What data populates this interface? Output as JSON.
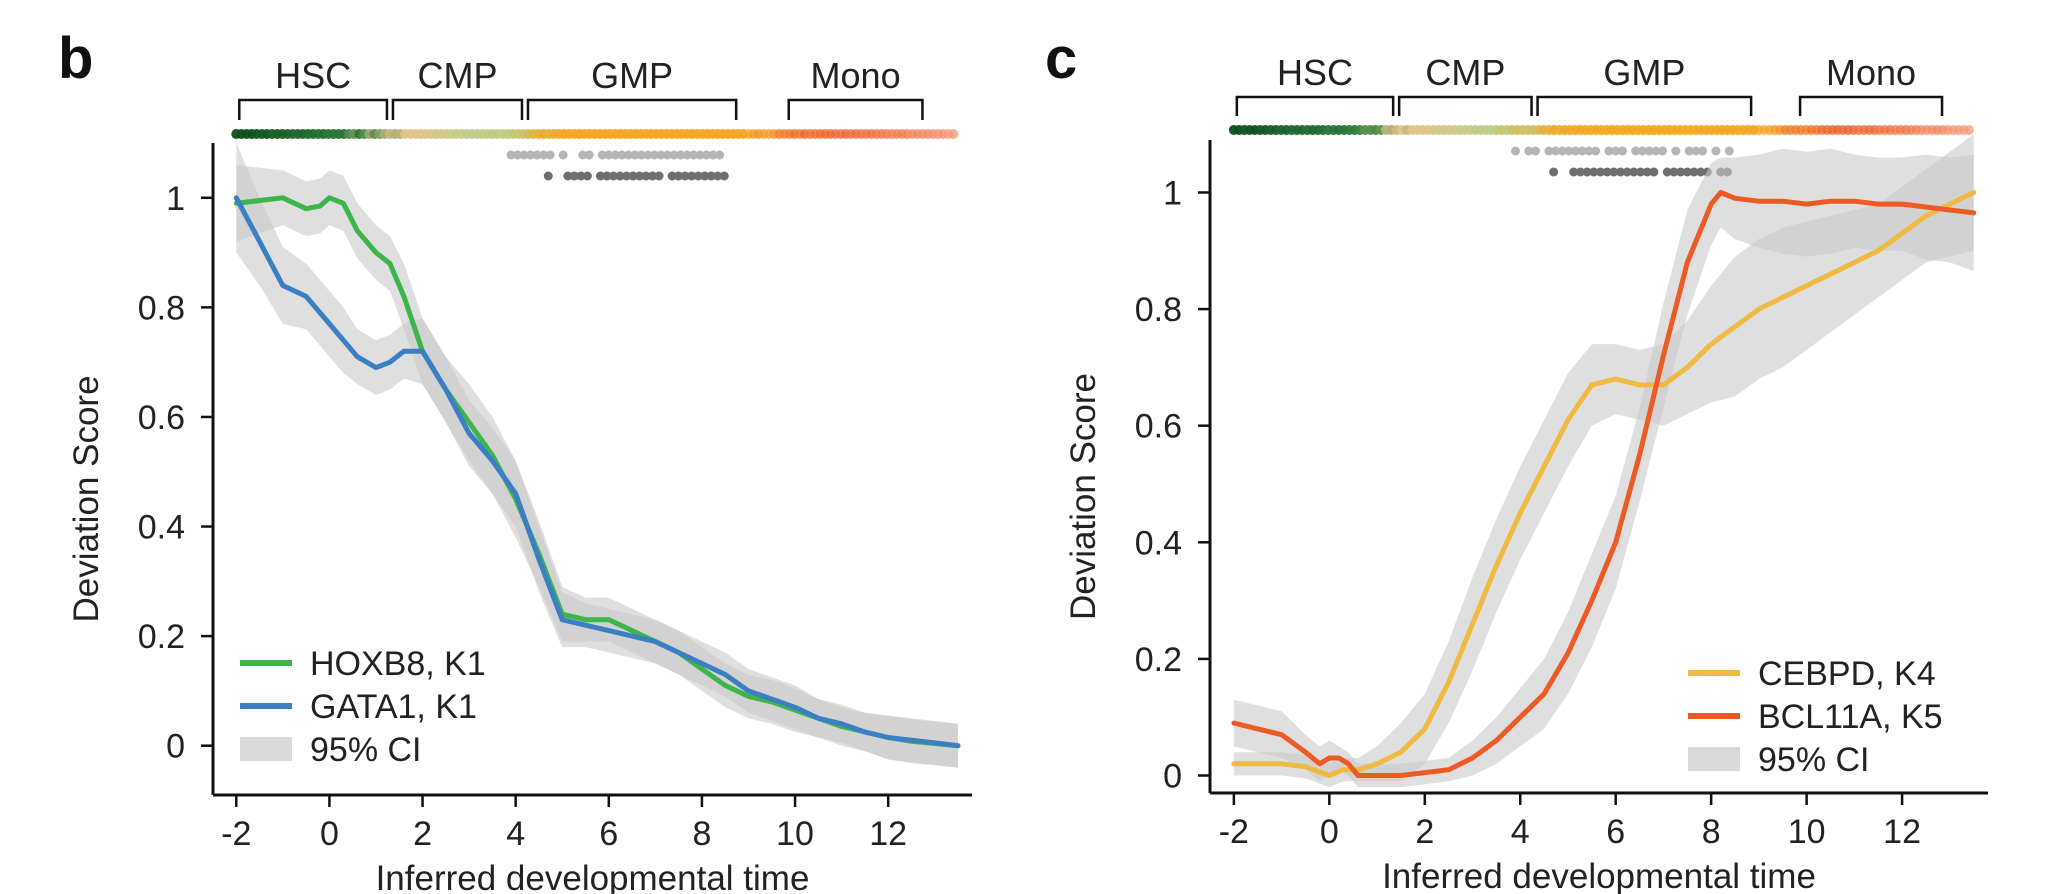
{
  "chart_data": [
    {
      "type": "line",
      "panel_label": "b",
      "xlabel": "Inferred developmental time",
      "ylabel": "Deviation Score",
      "xlim": [
        -2.5,
        13.8
      ],
      "ylim": [
        -0.09,
        1.1
      ],
      "x_ticks": [
        -2,
        0,
        2,
        4,
        6,
        8,
        10,
        12
      ],
      "x_tick_labels": [
        "-2",
        "0",
        "2",
        "4",
        "6",
        "8",
        "10",
        "12"
      ],
      "y_ticks": [
        0,
        0.2,
        0.4,
        0.6,
        0.8,
        1
      ],
      "y_tick_labels": [
        "0",
        "0.2",
        "0.4",
        "0.6",
        "0.8",
        "1"
      ],
      "stages": [
        {
          "label": "HSC",
          "x_start": -2,
          "x_end": 1.3
        },
        {
          "label": "CMP",
          "x_start": 1.3,
          "x_end": 4.2
        },
        {
          "label": "GMP",
          "x_start": 4.2,
          "x_end": 8.8
        },
        {
          "label": "Mono",
          "x_start": 9.8,
          "x_end": 12.8
        }
      ],
      "ci_label": "95% CI",
      "legend_position": "bottom-left",
      "series": [
        {
          "name": "HOXB8, K1",
          "color": "#3cb54a",
          "x": [
            -2,
            -1.5,
            -1,
            -0.5,
            -0.2,
            0,
            0.3,
            0.6,
            1,
            1.3,
            1.6,
            2,
            2.5,
            3,
            3.5,
            4,
            4.5,
            5,
            5.5,
            6,
            6.5,
            7,
            7.5,
            8,
            8.5,
            9,
            9.5,
            10,
            10.5,
            11,
            11.5,
            12,
            12.5,
            13,
            13.5
          ],
          "y": [
            0.99,
            0.995,
            1.0,
            0.98,
            0.985,
            1.0,
            0.99,
            0.94,
            0.9,
            0.88,
            0.82,
            0.72,
            0.65,
            0.59,
            0.53,
            0.45,
            0.35,
            0.24,
            0.23,
            0.23,
            0.21,
            0.19,
            0.17,
            0.14,
            0.11,
            0.09,
            0.08,
            0.065,
            0.05,
            0.035,
            0.025,
            0.015,
            0.008,
            0.004,
            0.0
          ],
          "ci_half_width": [
            0.07,
            0.06,
            0.05,
            0.05,
            0.05,
            0.05,
            0.05,
            0.05,
            0.05,
            0.05,
            0.06,
            0.06,
            0.06,
            0.07,
            0.07,
            0.07,
            0.06,
            0.05,
            0.04,
            0.04,
            0.04,
            0.04,
            0.04,
            0.04,
            0.04,
            0.04,
            0.04,
            0.04,
            0.035,
            0.035,
            0.035,
            0.04,
            0.04,
            0.04,
            0.04
          ]
        },
        {
          "name": "GATA1, K1",
          "color": "#3a7fc4",
          "x": [
            -2,
            -1.5,
            -1,
            -0.5,
            0,
            0.3,
            0.6,
            1,
            1.3,
            1.6,
            2,
            2.5,
            3,
            3.5,
            4,
            4.5,
            5,
            5.5,
            6,
            6.5,
            7,
            7.5,
            8,
            8.5,
            9,
            9.5,
            10,
            10.5,
            11,
            11.5,
            12,
            12.5,
            13,
            13.5
          ],
          "y": [
            1.0,
            0.92,
            0.84,
            0.82,
            0.77,
            0.74,
            0.71,
            0.69,
            0.7,
            0.72,
            0.72,
            0.65,
            0.57,
            0.52,
            0.46,
            0.34,
            0.23,
            0.22,
            0.21,
            0.2,
            0.19,
            0.17,
            0.15,
            0.13,
            0.1,
            0.085,
            0.07,
            0.05,
            0.04,
            0.025,
            0.015,
            0.01,
            0.005,
            0.0
          ],
          "ci_half_width": [
            0.1,
            0.08,
            0.07,
            0.06,
            0.06,
            0.06,
            0.05,
            0.05,
            0.05,
            0.05,
            0.06,
            0.06,
            0.06,
            0.06,
            0.06,
            0.06,
            0.05,
            0.04,
            0.04,
            0.04,
            0.04,
            0.04,
            0.04,
            0.04,
            0.04,
            0.04,
            0.04,
            0.035,
            0.035,
            0.035,
            0.04,
            0.04,
            0.04,
            0.04
          ]
        }
      ]
    },
    {
      "type": "line",
      "panel_label": "c",
      "xlabel": "Inferred developmental time",
      "ylabel": "Deviation Score",
      "xlim": [
        -2.5,
        13.8
      ],
      "ylim": [
        -0.03,
        1.09
      ],
      "x_ticks": [
        -2,
        0,
        2,
        4,
        6,
        8,
        10,
        12
      ],
      "x_tick_labels": [
        "-2",
        "0",
        "2",
        "4",
        "6",
        "8",
        "10",
        "12"
      ],
      "y_ticks": [
        0,
        0.2,
        0.4,
        0.6,
        0.8,
        1
      ],
      "y_tick_labels": [
        "0",
        "0.2",
        "0.4",
        "0.6",
        "0.8",
        "1"
      ],
      "stages": [
        {
          "label": "HSC",
          "x_start": -2,
          "x_end": 1.4
        },
        {
          "label": "CMP",
          "x_start": 1.4,
          "x_end": 4.3
        },
        {
          "label": "GMP",
          "x_start": 4.3,
          "x_end": 8.9
        },
        {
          "label": "Mono",
          "x_start": 9.8,
          "x_end": 12.9
        }
      ],
      "ci_label": "95% CI",
      "legend_position": "bottom-right",
      "series": [
        {
          "name": "CEBPD, K4",
          "color": "#f0b942",
          "x": [
            -2,
            -1.5,
            -1,
            -0.5,
            0,
            0.3,
            0.6,
            1,
            1.5,
            2,
            2.5,
            3,
            3.5,
            4,
            4.5,
            5,
            5.5,
            6,
            6.5,
            7,
            7.5,
            8,
            8.5,
            9,
            9.5,
            10,
            10.5,
            11,
            11.5,
            12,
            12.5,
            13,
            13.5
          ],
          "y": [
            0.02,
            0.02,
            0.02,
            0.015,
            0.0,
            0.01,
            0.01,
            0.02,
            0.04,
            0.08,
            0.16,
            0.26,
            0.36,
            0.45,
            0.53,
            0.61,
            0.67,
            0.68,
            0.67,
            0.67,
            0.7,
            0.74,
            0.77,
            0.8,
            0.82,
            0.84,
            0.86,
            0.88,
            0.9,
            0.93,
            0.96,
            0.98,
            1.0
          ],
          "ci_half_width": [
            0.02,
            0.02,
            0.02,
            0.02,
            0.02,
            0.02,
            0.02,
            0.03,
            0.05,
            0.06,
            0.07,
            0.08,
            0.08,
            0.08,
            0.08,
            0.08,
            0.07,
            0.06,
            0.06,
            0.07,
            0.08,
            0.1,
            0.12,
            0.12,
            0.12,
            0.11,
            0.1,
            0.09,
            0.08,
            0.08,
            0.08,
            0.09,
            0.1
          ]
        },
        {
          "name": "BCL11A, K5",
          "color": "#ee5a24",
          "x": [
            -2,
            -1.5,
            -1,
            -0.5,
            -0.2,
            0,
            0.2,
            0.4,
            0.6,
            1,
            1.5,
            2,
            2.5,
            3,
            3.5,
            4,
            4.5,
            5,
            5.5,
            6,
            6.5,
            7,
            7.5,
            8,
            8.2,
            8.5,
            9,
            9.5,
            10,
            10.5,
            11,
            11.5,
            12,
            12.5,
            13,
            13.5
          ],
          "y": [
            0.09,
            0.08,
            0.07,
            0.04,
            0.02,
            0.03,
            0.03,
            0.02,
            0.0,
            0.0,
            0.0,
            0.005,
            0.01,
            0.03,
            0.06,
            0.1,
            0.14,
            0.21,
            0.3,
            0.4,
            0.55,
            0.72,
            0.88,
            0.98,
            1.0,
            0.99,
            0.985,
            0.985,
            0.98,
            0.985,
            0.985,
            0.98,
            0.98,
            0.975,
            0.97,
            0.965
          ],
          "ci_half_width": [
            0.04,
            0.04,
            0.04,
            0.03,
            0.03,
            0.03,
            0.02,
            0.02,
            0.02,
            0.02,
            0.02,
            0.02,
            0.02,
            0.03,
            0.04,
            0.05,
            0.06,
            0.07,
            0.08,
            0.08,
            0.08,
            0.09,
            0.09,
            0.07,
            0.06,
            0.07,
            0.08,
            0.09,
            0.09,
            0.09,
            0.08,
            0.08,
            0.08,
            0.09,
            0.09,
            0.1
          ]
        }
      ]
    }
  ]
}
